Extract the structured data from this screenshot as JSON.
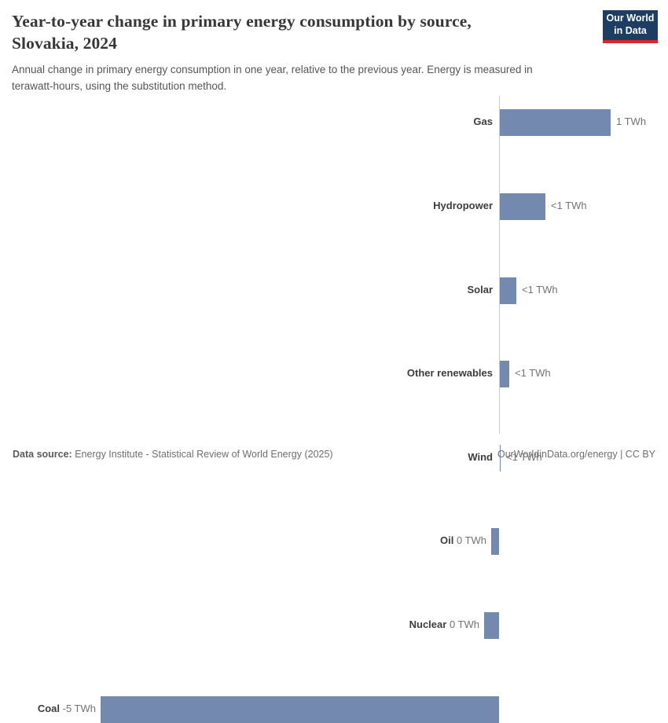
{
  "header": {
    "title": "Year-to-year change in primary energy consumption by source,\nSlovakia, 2024",
    "subtitle": "Annual change in primary energy consumption in one year, relative to the previous year. Energy is measured in\nterawatt-hours, using the substitution method."
  },
  "logo": {
    "line1": "Our World",
    "line2": "in Data",
    "bg_color": "#1d3d63",
    "accent_color": "#dc2726"
  },
  "chart_data": {
    "type": "bar",
    "orientation": "horizontal",
    "title": "Year-to-year change in primary energy consumption by source, Slovakia, 2024",
    "unit": "TWh",
    "categories": [
      "Gas",
      "Hydropower",
      "Solar",
      "Other renewables",
      "Wind",
      "Oil",
      "Nuclear",
      "Coal"
    ],
    "values_twh": [
      1.39,
      0.57,
      0.21,
      0.12,
      0.01,
      -0.1,
      -0.19,
      -5.0
    ],
    "value_labels": [
      "1 TWh",
      "<1 TWh",
      "<1 TWh",
      "<1 TWh",
      "<1 TWh",
      "0 TWh",
      "0 TWh",
      "-5 TWh"
    ],
    "xlim": [
      -5.1,
      2.1
    ],
    "grid": false,
    "legend": "none",
    "bar_color": "#7389ae",
    "axis_color": "#cccccc"
  },
  "footer": {
    "source_label": "Data source:",
    "source_text": " Energy Institute - Statistical Review of World Energy (2025)",
    "right_text": "OurWorldinData.org/energy | CC BY"
  }
}
